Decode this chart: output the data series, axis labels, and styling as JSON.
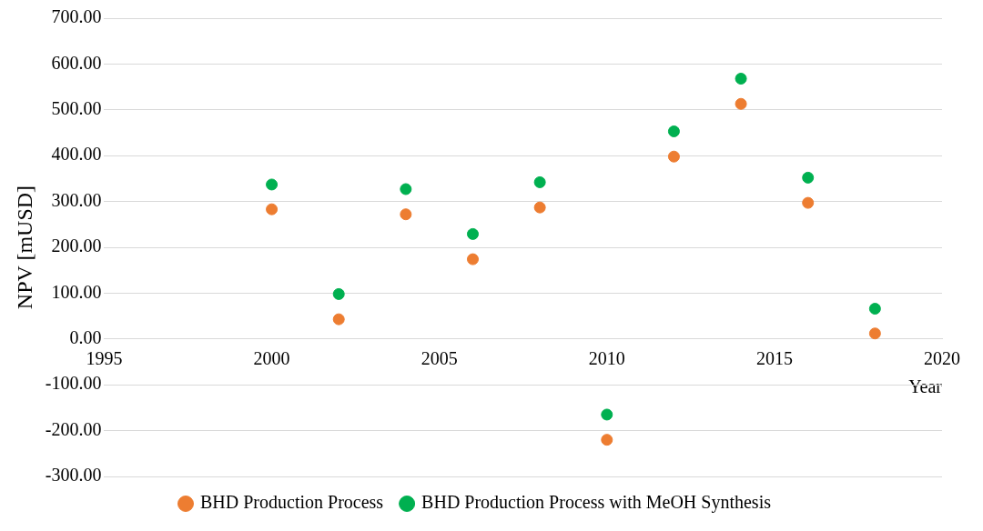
{
  "chart_data": {
    "type": "scatter",
    "xlabel": "Year",
    "ylabel": "NPV [mUSD]",
    "x": [
      2000,
      2002,
      2004,
      2006,
      2008,
      2010,
      2012,
      2014,
      2016,
      2018
    ],
    "series": [
      {
        "name": "BHD Production Process",
        "color": "#ed7d31",
        "values": [
          283,
          43,
          272,
          174,
          287,
          -220,
          398,
          513,
          297,
          12
        ]
      },
      {
        "name": "BHD Production Process with MeOH Synthesis",
        "color": "#00b050",
        "values": [
          337,
          98,
          327,
          229,
          342,
          -165,
          453,
          568,
          352,
          66
        ]
      }
    ],
    "xlim": [
      1995,
      2020
    ],
    "xticks": [
      1995,
      2000,
      2005,
      2010,
      2015,
      2020
    ],
    "ylim": [
      -300,
      700
    ],
    "yticks": [
      {
        "value": -300,
        "label": "-300.00"
      },
      {
        "value": -200,
        "label": "-200.00"
      },
      {
        "value": -100,
        "label": "-100.00"
      },
      {
        "value": 0,
        "label": "0.00"
      },
      {
        "value": 100,
        "label": "100.00"
      },
      {
        "value": 200,
        "label": "200.00"
      },
      {
        "value": 300,
        "label": "300.00"
      },
      {
        "value": 400,
        "label": "400.00"
      },
      {
        "value": 500,
        "label": "500.00"
      },
      {
        "value": 600,
        "label": "600.00"
      },
      {
        "value": 700,
        "label": "700.00"
      }
    ],
    "grid": "y",
    "legend": "bottom",
    "marker": "circle"
  }
}
